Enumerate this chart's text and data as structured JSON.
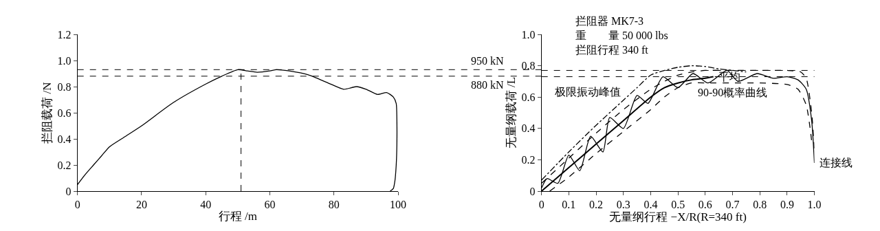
{
  "chart_data": [
    {
      "type": "line",
      "xlabel": "行程 /m",
      "ylabel": "拦阻载荷 /N",
      "xlim": [
        0,
        100
      ],
      "ylim": [
        0,
        1.2
      ],
      "xticks": [
        0,
        20,
        40,
        60,
        80,
        100
      ],
      "yticks": [
        0,
        0.2,
        0.4,
        0.6,
        0.8,
        {
          "value": 1,
          "label": "1.0"
        },
        1.2
      ],
      "legend": false,
      "marker": "none",
      "series": [
        {
          "color": "#000000",
          "line_style": "solid",
          "x": [
            0,
            2.5,
            5,
            7.5,
            10,
            15,
            20,
            30,
            40,
            45,
            50,
            53,
            56,
            60,
            62,
            66,
            72,
            78,
            83,
            87,
            90,
            93.6,
            96.4,
            98.5,
            99.4,
            99.6,
            99.6,
            99.4,
            99,
            98.5,
            97.5
          ],
          "values": [
            0.05,
            0.13,
            0.2,
            0.27,
            0.34,
            0.42,
            0.5,
            0.68,
            0.82,
            0.88,
            0.93,
            0.92,
            0.91,
            0.92,
            0.93,
            0.92,
            0.89,
            0.83,
            0.78,
            0.8,
            0.78,
            0.74,
            0.755,
            0.72,
            0.67,
            0.55,
            0.35,
            0.2,
            0.08,
            0.02,
            0
          ]
        }
      ],
      "ref_lines": [
        {
          "axis": "y",
          "value": 0.93,
          "label": "950 kN",
          "line_style": "dashed",
          "color": "#000000"
        },
        {
          "axis": "y",
          "value": 0.88,
          "label": "880 kN",
          "line_style": "dashed",
          "color": "#000000"
        },
        {
          "axis": "x",
          "value": 51,
          "line_style": "dashed",
          "color": "#000000"
        }
      ]
    },
    {
      "type": "line",
      "xlabel": "无量纲行程 −X/R(R=340 ft)",
      "ylabel": "无量纲载荷 /L",
      "xlim": [
        0,
        1
      ],
      "ylim": [
        0,
        1
      ],
      "xticks": [
        0,
        0.1,
        0.2,
        0.3,
        0.4,
        0.5,
        0.6,
        0.7,
        0.8,
        0.9,
        {
          "value": 1,
          "label": "1.0"
        }
      ],
      "yticks": [
        0,
        0.2,
        0.4,
        0.6,
        0.8,
        {
          "value": 1,
          "label": "1.0"
        }
      ],
      "legend": false,
      "marker": "none",
      "annotations": [
        "拦阻器 MK7-3",
        "重　　量 50 000 lbs",
        "拦阻行程 340 ft"
      ],
      "series": [
        {
          "name": "平均",
          "color": "#000000",
          "line_style": "solid",
          "x": [
            0,
            0.1,
            0.2,
            0.3,
            0.4,
            0.45,
            0.5,
            0.55,
            0.6,
            0.63
          ],
          "values": [
            0,
            0.15,
            0.3,
            0.45,
            0.6,
            0.66,
            0.69,
            0.71,
            0.72,
            0.73
          ]
        },
        {
          "name": "90-90概率曲线",
          "color": "#000000",
          "line_style": "dashed",
          "x": [
            0.03,
            0.1,
            0.2,
            0.3,
            0.4,
            0.45,
            0.5,
            0.55,
            0.6,
            0.7,
            0.8,
            0.9,
            0.94,
            0.97,
            0.99
          ],
          "values": [
            0,
            0.09,
            0.24,
            0.38,
            0.52,
            0.6,
            0.66,
            0.69,
            0.69,
            0.69,
            0.69,
            0.68,
            0.65,
            0.55,
            0.32
          ]
        },
        {
          "color": "#000000",
          "line_style": "dashed",
          "x": [
            0,
            0.1,
            0.2,
            0.3,
            0.4,
            0.45,
            0.5,
            0.55,
            0.6,
            0.7,
            0.8,
            0.9,
            0.95,
            0.97,
            0.99,
            1
          ],
          "values": [
            0.05,
            0.21,
            0.37,
            0.52,
            0.65,
            0.7,
            0.74,
            0.76,
            0.77,
            0.77,
            0.77,
            0.77,
            0.76,
            0.72,
            0.5,
            0.25
          ]
        },
        {
          "name": "极限振动峰值",
          "color": "#000000",
          "line_style": "dashdot",
          "x": [
            0,
            0.1,
            0.2,
            0.3,
            0.35,
            0.4,
            0.45,
            0.5,
            0.55,
            0.6,
            0.65,
            0.7,
            0.75
          ],
          "values": [
            0.07,
            0.25,
            0.42,
            0.58,
            0.66,
            0.74,
            0.77,
            0.79,
            0.8,
            0.795,
            0.78,
            0.77,
            0.76
          ]
        },
        {
          "name": "连接线",
          "color": "#000000",
          "line_style": "solid",
          "x": [
            0,
            0.02,
            0.06,
            0.1,
            0.14,
            0.18,
            0.225,
            0.25,
            0.3,
            0.35,
            0.39,
            0.445,
            0.5,
            0.555,
            0.61,
            0.68,
            0.72,
            0.79,
            0.85,
            0.9,
            0.94,
            0.97,
            0.99,
            1
          ],
          "values": [
            0.02,
            0.08,
            0.05,
            0.23,
            0.13,
            0.35,
            0.25,
            0.47,
            0.4,
            0.61,
            0.56,
            0.73,
            0.66,
            0.75,
            0.69,
            0.77,
            0.7,
            0.75,
            0.72,
            0.73,
            0.71,
            0.65,
            0.45,
            0.18
          ]
        }
      ],
      "ref_lines": [
        {
          "axis": "y",
          "value": 0.77,
          "line_style": "dashed",
          "color": "#000000"
        },
        {
          "axis": "y",
          "value": 0.73,
          "line_style": "dashed",
          "color": "#000000"
        }
      ]
    }
  ]
}
